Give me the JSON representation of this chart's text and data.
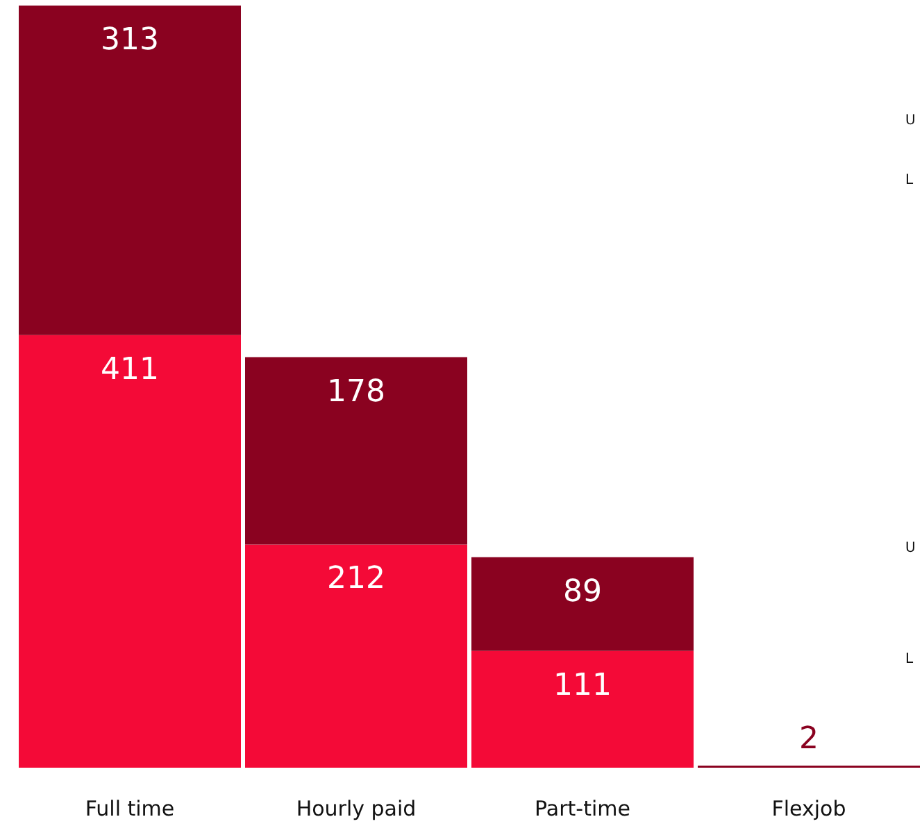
{
  "chart_data": {
    "type": "bar",
    "stacked": true,
    "categories": [
      "Full time",
      "Hourly paid",
      "Part-time",
      "Flexjob"
    ],
    "series": [
      {
        "color": "#f40a37",
        "values": [
          411,
          212,
          111,
          0
        ],
        "value_labels": [
          "411",
          "212",
          "111",
          null
        ]
      },
      {
        "color": "#8a0220",
        "values": [
          313,
          178,
          89,
          2
        ],
        "value_labels": [
          "313",
          "178",
          "89",
          "2"
        ]
      }
    ],
    "annotations": [
      "U",
      "L",
      "U",
      "L"
    ]
  }
}
